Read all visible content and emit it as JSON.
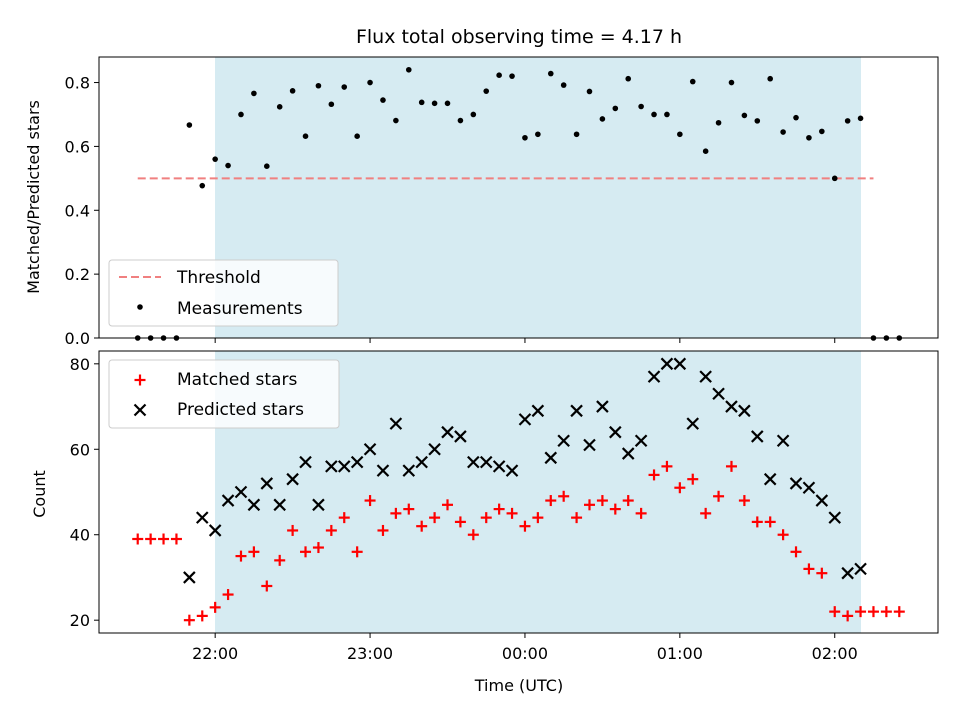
{
  "chart_data": [
    {
      "type": "scatter",
      "title": "Flux total observing time = 4.17 h",
      "xlabel": "",
      "ylabel": "Matched/Predicted stars",
      "ylim": [
        0,
        0.88
      ],
      "xlim": [
        "21:15",
        "02:40"
      ],
      "x_ticks": [
        "22:00",
        "23:00",
        "00:00",
        "01:00",
        "02:00"
      ],
      "y_ticks": [
        "0.0",
        "0.2",
        "0.4",
        "0.6",
        "0.8"
      ],
      "shaded_region": {
        "from": "22:00",
        "to": "02:10",
        "color": "#add8e6"
      },
      "threshold": {
        "name": "Threshold",
        "value": 0.5,
        "from": "21:30",
        "to": "02:15",
        "color": "#f08080",
        "style": "dashed"
      },
      "series": [
        {
          "name": "Measurements",
          "marker": "dot",
          "color": "#000000",
          "x": [
            "21:30",
            "21:35",
            "21:40",
            "21:45",
            "21:50",
            "21:55",
            "22:00",
            "22:05",
            "22:10",
            "22:15",
            "22:20",
            "22:25",
            "22:30",
            "22:35",
            "22:40",
            "22:45",
            "22:50",
            "22:55",
            "23:00",
            "23:05",
            "23:10",
            "23:15",
            "23:20",
            "23:25",
            "23:30",
            "23:35",
            "23:40",
            "23:45",
            "23:50",
            "23:55",
            "00:00",
            "00:05",
            "00:10",
            "00:15",
            "00:20",
            "00:25",
            "00:30",
            "00:35",
            "00:40",
            "00:45",
            "00:50",
            "00:55",
            "01:00",
            "01:05",
            "01:10",
            "01:15",
            "01:20",
            "01:25",
            "01:30",
            "01:35",
            "01:40",
            "01:45",
            "01:50",
            "01:55",
            "02:00",
            "02:05",
            "02:10",
            "02:15",
            "02:20",
            "02:25"
          ],
          "y": [
            0.0,
            0.0,
            0.0,
            0.0,
            0.667,
            0.477,
            0.56,
            0.54,
            0.7,
            0.766,
            0.538,
            0.724,
            0.774,
            0.632,
            0.79,
            0.732,
            0.786,
            0.632,
            0.8,
            0.745,
            0.681,
            0.84,
            0.738,
            0.735,
            0.735,
            0.681,
            0.7,
            0.773,
            0.823,
            0.82,
            0.627,
            0.638,
            0.828,
            0.792,
            0.638,
            0.772,
            0.686,
            0.719,
            0.812,
            0.725,
            0.7,
            0.7,
            0.638,
            0.803,
            0.585,
            0.674,
            0.8,
            0.697,
            0.68,
            0.812,
            0.645,
            0.69,
            0.627,
            0.647,
            0.5,
            0.68,
            0.688,
            0.0,
            0.0,
            0.0
          ]
        }
      ],
      "legend": {
        "position": "lower-left",
        "entries": [
          "Threshold",
          "Measurements"
        ]
      }
    },
    {
      "type": "scatter",
      "title": "",
      "xlabel": "Time (UTC)",
      "ylabel": "Count",
      "ylim": [
        17,
        83
      ],
      "xlim": [
        "21:15",
        "02:40"
      ],
      "x_ticks": [
        "22:00",
        "23:00",
        "00:00",
        "01:00",
        "02:00"
      ],
      "y_ticks": [
        "20",
        "40",
        "60",
        "80"
      ],
      "shaded_region": {
        "from": "22:00",
        "to": "02:10",
        "color": "#add8e6"
      },
      "series": [
        {
          "name": "Matched stars",
          "marker": "plus",
          "color": "#ff0000",
          "x": [
            "21:30",
            "21:35",
            "21:40",
            "21:45",
            "21:50",
            "21:55",
            "22:00",
            "22:05",
            "22:10",
            "22:15",
            "22:20",
            "22:25",
            "22:30",
            "22:35",
            "22:40",
            "22:45",
            "22:50",
            "22:55",
            "23:00",
            "23:05",
            "23:10",
            "23:15",
            "23:20",
            "23:25",
            "23:30",
            "23:35",
            "23:40",
            "23:45",
            "23:50",
            "23:55",
            "00:00",
            "00:05",
            "00:10",
            "00:15",
            "00:20",
            "00:25",
            "00:30",
            "00:35",
            "00:40",
            "00:45",
            "00:50",
            "00:55",
            "01:00",
            "01:05",
            "01:10",
            "01:15",
            "01:20",
            "01:25",
            "01:30",
            "01:35",
            "01:40",
            "01:45",
            "01:50",
            "01:55",
            "02:00",
            "02:05",
            "02:10",
            "02:15",
            "02:20",
            "02:25"
          ],
          "y": [
            39,
            39,
            39,
            39,
            20,
            21,
            23,
            26,
            35,
            36,
            28,
            34,
            41,
            36,
            37,
            41,
            44,
            36,
            48,
            41,
            45,
            46,
            42,
            44,
            47,
            43,
            40,
            44,
            46,
            45,
            42,
            44,
            48,
            49,
            44,
            47,
            48,
            46,
            48,
            45,
            54,
            56,
            51,
            53,
            45,
            49,
            56,
            48,
            43,
            43,
            40,
            36,
            32,
            31,
            22,
            21,
            22,
            22,
            22,
            22
          ]
        },
        {
          "name": "Predicted stars",
          "marker": "x",
          "color": "#000000",
          "x": [
            "21:50",
            "21:55",
            "22:00",
            "22:05",
            "22:10",
            "22:15",
            "22:20",
            "22:25",
            "22:30",
            "22:35",
            "22:40",
            "22:45",
            "22:50",
            "22:55",
            "23:00",
            "23:05",
            "23:10",
            "23:15",
            "23:20",
            "23:25",
            "23:30",
            "23:35",
            "23:40",
            "23:45",
            "23:50",
            "23:55",
            "00:00",
            "00:05",
            "00:10",
            "00:15",
            "00:20",
            "00:25",
            "00:30",
            "00:35",
            "00:40",
            "00:45",
            "00:50",
            "00:55",
            "01:00",
            "01:05",
            "01:10",
            "01:15",
            "01:20",
            "01:25",
            "01:30",
            "01:35",
            "01:40",
            "01:45",
            "01:50",
            "01:55",
            "02:00",
            "02:05",
            "02:10"
          ],
          "y": [
            30,
            44,
            41,
            48,
            50,
            47,
            52,
            47,
            53,
            57,
            47,
            56,
            56,
            57,
            60,
            55,
            66,
            55,
            57,
            60,
            64,
            63,
            57,
            57,
            56,
            55,
            67,
            69,
            58,
            62,
            69,
            61,
            70,
            64,
            59,
            62,
            77,
            80,
            80,
            66,
            77,
            73,
            70,
            69,
            63,
            53,
            62,
            52,
            51,
            48,
            44,
            31,
            32
          ]
        }
      ],
      "legend": {
        "position": "upper-left",
        "entries": [
          "Matched stars",
          "Predicted stars"
        ]
      }
    }
  ]
}
